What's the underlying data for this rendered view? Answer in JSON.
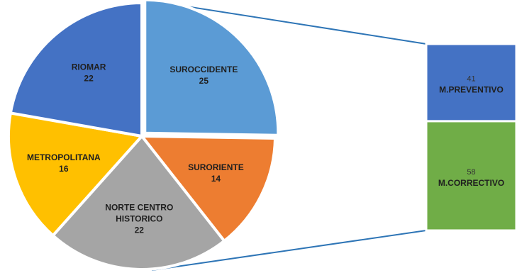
{
  "chart_data": {
    "type": "bar-of-pie",
    "title": "",
    "pie": {
      "slices": [
        {
          "label": "SUROCCIDENTE",
          "value": 25,
          "color": "#5B9BD5"
        },
        {
          "label": "SURORIENTE",
          "value": 14,
          "color": "#ED7D31"
        },
        {
          "label": "NORTE CENTRO HISTORICO",
          "value": 22,
          "color": "#A5A5A5"
        },
        {
          "label": "METROPOLITANA",
          "value": 16,
          "color": "#FFC000"
        },
        {
          "label": "RIOMAR",
          "value": 22,
          "color": "#4472C4"
        }
      ]
    },
    "bar": {
      "segments": [
        {
          "label": "M.PREVENTIVO",
          "value": 41,
          "color": "#4472C4"
        },
        {
          "label": "M.CORRECTIVO",
          "value": 58,
          "color": "#70AD47"
        }
      ]
    },
    "connector_color": "#2E75B6"
  }
}
